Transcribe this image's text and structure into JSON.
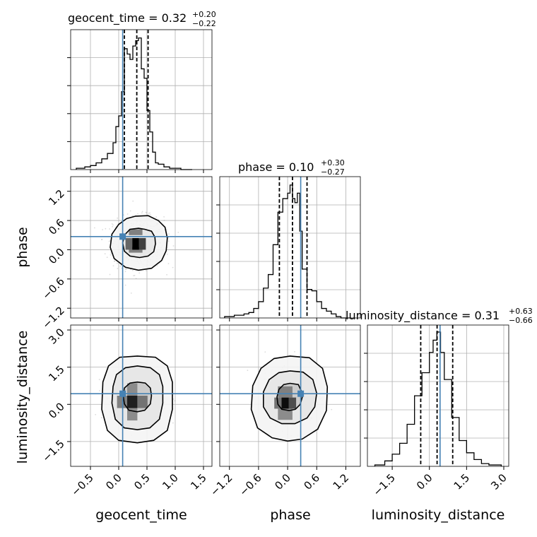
{
  "chart_data": {
    "type": "corner",
    "colors": {
      "truth": "#4682b4",
      "hist": "#000000",
      "grid": "#b0b0b0",
      "point": "#808080"
    },
    "parameters": [
      {
        "name": "geocent_time",
        "label": "geocent_time",
        "range": [
          -0.85,
          1.65
        ],
        "ticks": [
          -0.5,
          0.0,
          0.5,
          1.0,
          1.5
        ],
        "tick_labels": [
          "−0.5",
          "0.0",
          "0.5",
          "1.0",
          "1.5"
        ],
        "truth": 0.07,
        "quantiles": [
          0.1,
          0.32,
          0.52
        ],
        "title_main": "geocent_time = 0.32",
        "title_sup": "+0.20",
        "title_sub": "−0.22",
        "hist_bins": [
          -0.75,
          -0.6,
          -0.5,
          -0.4,
          -0.3,
          -0.2,
          -0.1,
          -0.05,
          0.0,
          0.05,
          0.1,
          0.15,
          0.2,
          0.25,
          0.3,
          0.35,
          0.4,
          0.45,
          0.5,
          0.55,
          0.6,
          0.65,
          0.7,
          0.8,
          0.9,
          1.0,
          1.1,
          1.3
        ],
        "hist_counts": [
          0.01,
          0.02,
          0.03,
          0.05,
          0.08,
          0.12,
          0.2,
          0.32,
          0.4,
          0.58,
          0.9,
          0.86,
          0.82,
          0.92,
          0.96,
          0.98,
          0.75,
          0.68,
          0.44,
          0.28,
          0.13,
          0.05,
          0.04,
          0.02,
          0.01,
          0.01,
          0.0
        ]
      },
      {
        "name": "phase",
        "label": "phase",
        "range": [
          -1.4,
          1.5
        ],
        "ticks": [
          -1.2,
          -0.6,
          0.0,
          0.6,
          1.2
        ],
        "tick_labels": [
          "−1.2",
          "−0.6",
          "0.0",
          "0.6",
          "1.2"
        ],
        "truth": 0.27,
        "quantiles": [
          -0.17,
          0.1,
          0.4
        ],
        "title_main": "phase = 0.10",
        "title_sup": "+0.30",
        "title_sub": "−0.27",
        "hist_bins": [
          -1.3,
          -1.1,
          -0.9,
          -0.8,
          -0.7,
          -0.6,
          -0.5,
          -0.4,
          -0.3,
          -0.2,
          -0.1,
          0.0,
          0.05,
          0.1,
          0.15,
          0.2,
          0.25,
          0.3,
          0.4,
          0.5,
          0.6,
          0.7,
          0.8,
          0.9,
          1.0,
          1.1,
          1.3
        ],
        "hist_counts": [
          0.01,
          0.02,
          0.03,
          0.04,
          0.07,
          0.12,
          0.22,
          0.32,
          0.54,
          0.78,
          0.88,
          0.92,
          0.98,
          0.88,
          0.85,
          0.92,
          0.64,
          0.36,
          0.21,
          0.2,
          0.12,
          0.07,
          0.05,
          0.03,
          0.01,
          0.0
        ]
      },
      {
        "name": "luminosity_distance",
        "label": "luminosity_distance",
        "range": [
          -2.5,
          3.2
        ],
        "ticks": [
          -1.5,
          0.0,
          1.5,
          3.0
        ],
        "tick_labels": [
          "−1.5",
          "0.0",
          "1.5",
          "3.0"
        ],
        "truth": 0.43,
        "quantiles": [
          -0.35,
          0.31,
          0.94
        ],
        "title_main": "luminosity_distance = 0.31",
        "title_sup": "+0.63",
        "title_sub": "−0.66",
        "hist_bins": [
          -2.2,
          -1.8,
          -1.5,
          -1.2,
          -0.9,
          -0.6,
          -0.3,
          0.0,
          0.15,
          0.3,
          0.45,
          0.6,
          0.9,
          1.2,
          1.5,
          1.8,
          2.1,
          2.4,
          2.9
        ],
        "hist_counts": [
          0.01,
          0.04,
          0.09,
          0.17,
          0.31,
          0.52,
          0.69,
          0.84,
          0.93,
          0.99,
          0.84,
          0.64,
          0.36,
          0.19,
          0.1,
          0.05,
          0.02,
          0.01
        ]
      }
    ],
    "pairs": [
      {
        "x": "geocent_time",
        "y": "phase",
        "peak": [
          0.35,
          0.15
        ],
        "contour_levels": [
          {
            "rx": 0.27,
            "ry": 0.29,
            "points": [
              [
                0.35,
                0.44
              ],
              [
                0.46,
                0.42
              ],
              [
                0.58,
                0.38
              ],
              [
                0.64,
                0.26
              ],
              [
                0.65,
                0.12
              ],
              [
                0.62,
                -0.04
              ],
              [
                0.52,
                -0.13
              ],
              [
                0.37,
                -0.16
              ],
              [
                0.2,
                -0.13
              ],
              [
                0.1,
                -0.03
              ],
              [
                0.07,
                0.14
              ],
              [
                0.1,
                0.3
              ],
              [
                0.2,
                0.42
              ]
            ]
          },
          {
            "rx": 0.5,
            "ry": 0.55,
            "points": [
              [
                0.3,
                0.69
              ],
              [
                0.52,
                0.7
              ],
              [
                0.7,
                0.6
              ],
              [
                0.82,
                0.46
              ],
              [
                0.86,
                0.24
              ],
              [
                0.84,
                -0.02
              ],
              [
                0.76,
                -0.22
              ],
              [
                0.58,
                -0.38
              ],
              [
                0.35,
                -0.42
              ],
              [
                0.12,
                -0.36
              ],
              [
                -0.08,
                -0.18
              ],
              [
                -0.15,
                0.05
              ],
              [
                -0.12,
                0.32
              ],
              [
                0.0,
                0.52
              ],
              [
                0.14,
                0.64
              ]
            ]
          }
        ],
        "density_cells": [
          {
            "x": 0.3,
            "y": 0.12,
            "w": 0.12,
            "h": 0.24,
            "shade": 0.0
          },
          {
            "x": 0.42,
            "y": 0.12,
            "w": 0.12,
            "h": 0.24,
            "shade": 0.25
          },
          {
            "x": 0.18,
            "y": 0.12,
            "w": 0.12,
            "h": 0.24,
            "shade": 0.4
          },
          {
            "x": 0.3,
            "y": 0.36,
            "w": 0.24,
            "h": 0.12,
            "shade": 0.5
          },
          {
            "x": 0.3,
            "y": 0.0,
            "w": 0.24,
            "h": 0.12,
            "shade": 0.5
          }
        ]
      },
      {
        "x": "geocent_time",
        "y": "luminosity_distance",
        "peak": [
          0.33,
          0.35
        ],
        "contour_levels": [
          {
            "points": [
              [
                0.33,
                0.9
              ],
              [
                0.47,
                0.86
              ],
              [
                0.56,
                0.66
              ],
              [
                0.58,
                0.35
              ],
              [
                0.56,
                0.02
              ],
              [
                0.46,
                -0.24
              ],
              [
                0.33,
                -0.3
              ],
              [
                0.18,
                -0.24
              ],
              [
                0.1,
                0.02
              ],
              [
                0.08,
                0.35
              ],
              [
                0.1,
                0.66
              ],
              [
                0.2,
                0.86
              ]
            ]
          },
          {
            "points": [
              [
                0.33,
                1.55
              ],
              [
                0.56,
                1.48
              ],
              [
                0.72,
                1.2
              ],
              [
                0.78,
                0.72
              ],
              [
                0.78,
                0.05
              ],
              [
                0.72,
                -0.6
              ],
              [
                0.55,
                -0.95
              ],
              [
                0.33,
                -1.02
              ],
              [
                0.1,
                -0.95
              ],
              [
                -0.06,
                -0.6
              ],
              [
                -0.12,
                0.05
              ],
              [
                -0.1,
                0.72
              ],
              [
                -0.04,
                1.2
              ],
              [
                0.12,
                1.48
              ]
            ]
          },
          {
            "points": [
              [
                0.33,
                1.95
              ],
              [
                0.65,
                1.9
              ],
              [
                0.86,
                1.55
              ],
              [
                0.95,
                0.9
              ],
              [
                0.95,
                -0.2
              ],
              [
                0.86,
                -1.05
              ],
              [
                0.62,
                -1.45
              ],
              [
                0.33,
                -1.55
              ],
              [
                0.0,
                -1.45
              ],
              [
                -0.2,
                -1.05
              ],
              [
                -0.3,
                -0.2
              ],
              [
                -0.28,
                0.9
              ],
              [
                -0.18,
                1.55
              ],
              [
                0.02,
                1.9
              ]
            ]
          }
        ],
        "density_cells": [
          {
            "x": 0.24,
            "y": 0.1,
            "w": 0.18,
            "h": 0.5,
            "shade": 0.12
          },
          {
            "x": 0.06,
            "y": 0.1,
            "w": 0.18,
            "h": 0.5,
            "shade": 0.5
          },
          {
            "x": 0.42,
            "y": 0.1,
            "w": 0.18,
            "h": 0.5,
            "shade": 0.45
          },
          {
            "x": 0.24,
            "y": 0.6,
            "w": 0.18,
            "h": 0.5,
            "shade": 0.55
          },
          {
            "x": 0.24,
            "y": -0.4,
            "w": 0.18,
            "h": 0.5,
            "shade": 0.55
          }
        ]
      },
      {
        "x": "phase",
        "y": "luminosity_distance",
        "peak": [
          0.05,
          0.3
        ],
        "contour_levels": [
          {
            "points": [
              [
                0.05,
                0.85
              ],
              [
                0.22,
                0.8
              ],
              [
                0.28,
                0.55
              ],
              [
                0.3,
                0.28
              ],
              [
                0.26,
                0.0
              ],
              [
                0.16,
                -0.2
              ],
              [
                0.03,
                -0.25
              ],
              [
                -0.12,
                -0.2
              ],
              [
                -0.2,
                0.0
              ],
              [
                -0.22,
                0.3
              ],
              [
                -0.18,
                0.6
              ],
              [
                -0.08,
                0.8
              ]
            ]
          },
          {
            "points": [
              [
                0.05,
                1.35
              ],
              [
                0.32,
                1.3
              ],
              [
                0.52,
                1.0
              ],
              [
                0.6,
                0.45
              ],
              [
                0.56,
                -0.1
              ],
              [
                0.4,
                -0.55
              ],
              [
                0.15,
                -0.78
              ],
              [
                -0.12,
                -0.78
              ],
              [
                -0.36,
                -0.55
              ],
              [
                -0.5,
                -0.1
              ],
              [
                -0.5,
                0.5
              ],
              [
                -0.38,
                1.0
              ],
              [
                -0.18,
                1.28
              ]
            ]
          },
          {
            "points": [
              [
                0.05,
                1.95
              ],
              [
                0.45,
                1.88
              ],
              [
                0.72,
                1.45
              ],
              [
                0.82,
                0.7
              ],
              [
                0.8,
                -0.25
              ],
              [
                0.62,
                -1.0
              ],
              [
                0.3,
                -1.4
              ],
              [
                0.0,
                -1.48
              ],
              [
                -0.32,
                -1.35
              ],
              [
                -0.62,
                -0.95
              ],
              [
                -0.75,
                -0.2
              ],
              [
                -0.72,
                0.75
              ],
              [
                -0.55,
                1.45
              ],
              [
                -0.28,
                1.85
              ]
            ]
          }
        ],
        "density_cells": [
          {
            "x": -0.05,
            "y": 0.05,
            "w": 0.15,
            "h": 0.45,
            "shade": 0.05
          },
          {
            "x": 0.1,
            "y": 0.05,
            "w": 0.15,
            "h": 0.45,
            "shade": 0.3
          },
          {
            "x": -0.2,
            "y": 0.05,
            "w": 0.15,
            "h": 0.45,
            "shade": 0.45
          },
          {
            "x": -0.05,
            "y": 0.5,
            "w": 0.3,
            "h": 0.45,
            "shade": 0.5
          },
          {
            "x": -0.05,
            "y": -0.4,
            "w": 0.3,
            "h": 0.45,
            "shade": 0.55
          }
        ]
      }
    ]
  }
}
